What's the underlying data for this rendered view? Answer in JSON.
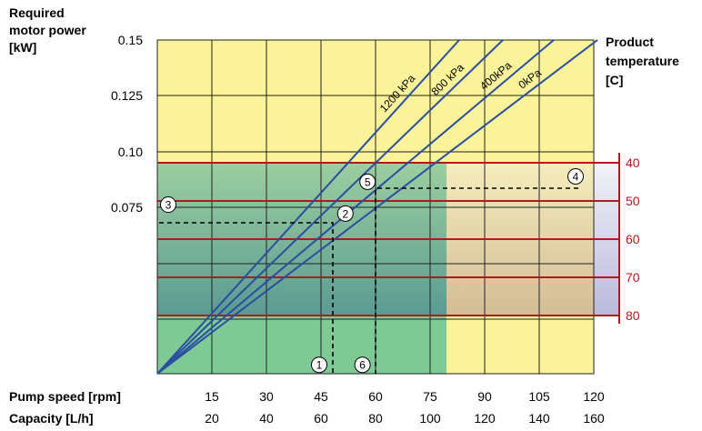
{
  "chart_data": {
    "type": "line",
    "title": "",
    "ylabel": "Required motor power [kW]",
    "ylabel_lines": [
      "Required",
      "motor power",
      "[kW]"
    ],
    "y2label": "Product temperature [C]",
    "y2label_lines": [
      "Product",
      "temperature",
      "[C]"
    ],
    "xlabel_speed": "Pump speed [rpm]",
    "xlabel_capacity": "Capacity [L/h]",
    "x_speed_ticks": [
      "15",
      "30",
      "45",
      "60",
      "75",
      "90",
      "105",
      "120"
    ],
    "x_capacity_ticks": [
      "20",
      "40",
      "60",
      "80",
      "100",
      "120",
      "140",
      "160"
    ],
    "y_ticks": [
      {
        "label": "0.15",
        "value": 0.15
      },
      {
        "label": "0.125",
        "value": 0.125
      },
      {
        "label": "0.10",
        "value": 0.1
      },
      {
        "label": "0.075",
        "value": 0.075
      }
    ],
    "temperature_ticks": [
      "40",
      "50",
      "60",
      "70",
      "80"
    ],
    "xlim": [
      0,
      120
    ],
    "ylim": [
      0,
      0.15
    ],
    "grid": true,
    "series": [
      {
        "name": "1200 kPa",
        "points": [
          [
            0,
            0
          ],
          [
            83,
            0.15
          ]
        ]
      },
      {
        "name": "800 kPa",
        "points": [
          [
            0,
            0
          ],
          [
            95,
            0.15
          ]
        ]
      },
      {
        "name": "400kPa",
        "points": [
          [
            0,
            0
          ],
          [
            109,
            0.15
          ]
        ]
      },
      {
        "name": "0kPa",
        "points": [
          [
            0,
            0
          ],
          [
            121,
            0.15
          ]
        ]
      }
    ],
    "markers": [
      {
        "label": "1",
        "x": 44.5,
        "y": 0.004
      },
      {
        "label": "2",
        "x": 51.7,
        "y": 0.072
      },
      {
        "label": "3",
        "x": 3,
        "y": 0.076
      },
      {
        "label": "4",
        "x": 115,
        "y": 0.0887
      },
      {
        "label": "5",
        "x": 57.8,
        "y": 0.0863
      },
      {
        "label": "6",
        "x": 56.4,
        "y": 0.004
      }
    ],
    "colors": {
      "plot_background": "#fbf39a",
      "green_region": "#7fc996",
      "temperature_lines": "#b0191e",
      "series_lines": "#2a4ea0",
      "dashed_lines": "#000000"
    }
  }
}
